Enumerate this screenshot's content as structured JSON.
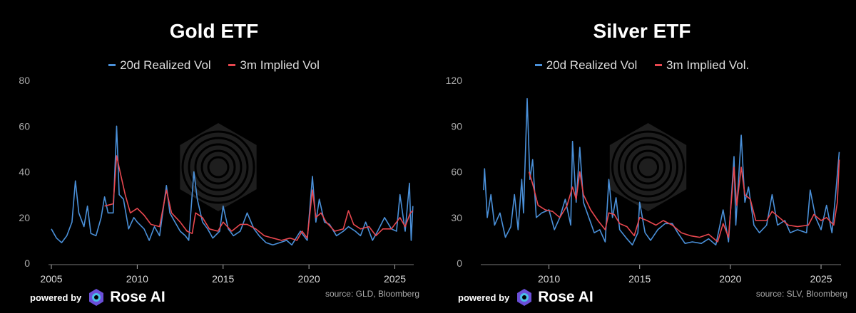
{
  "brand": {
    "powered_by": "powered by",
    "name": "Rose AI"
  },
  "colors": {
    "realized": "#4a90d9",
    "implied": "#e8474f",
    "axis": "#888888",
    "text": "#cccccc"
  },
  "chart_data": [
    {
      "type": "line",
      "title": "Gold ETF",
      "source": "source: GLD, Bloomberg",
      "xlim": [
        2005,
        2026.1
      ],
      "ylim": [
        0,
        80
      ],
      "yticks": [
        0,
        20,
        40,
        60,
        80
      ],
      "xticks": [
        2005,
        2010,
        2015,
        2020,
        2025
      ],
      "grid": false,
      "legend": "top",
      "series": [
        {
          "name": "20d Realized Vol",
          "color": "#4a90d9",
          "points": [
            [
              2005.0,
              15
            ],
            [
              2005.3,
              11
            ],
            [
              2005.6,
              9
            ],
            [
              2005.9,
              12
            ],
            [
              2006.2,
              18
            ],
            [
              2006.4,
              36
            ],
            [
              2006.6,
              22
            ],
            [
              2006.9,
              16
            ],
            [
              2007.1,
              25
            ],
            [
              2007.3,
              13
            ],
            [
              2007.6,
              12
            ],
            [
              2007.9,
              20
            ],
            [
              2008.1,
              29
            ],
            [
              2008.3,
              22
            ],
            [
              2008.6,
              22
            ],
            [
              2008.8,
              60
            ],
            [
              2008.95,
              30
            ],
            [
              2009.2,
              28
            ],
            [
              2009.5,
              15
            ],
            [
              2009.8,
              20
            ],
            [
              2010.0,
              18
            ],
            [
              2010.4,
              15
            ],
            [
              2010.7,
              10
            ],
            [
              2011.0,
              16
            ],
            [
              2011.3,
              12
            ],
            [
              2011.7,
              34
            ],
            [
              2011.9,
              22
            ],
            [
              2012.2,
              18
            ],
            [
              2012.5,
              14
            ],
            [
              2012.8,
              12
            ],
            [
              2013.0,
              10
            ],
            [
              2013.3,
              40
            ],
            [
              2013.5,
              28
            ],
            [
              2013.8,
              18
            ],
            [
              2014.1,
              15
            ],
            [
              2014.4,
              11
            ],
            [
              2014.8,
              14
            ],
            [
              2015.0,
              25
            ],
            [
              2015.3,
              15
            ],
            [
              2015.6,
              12
            ],
            [
              2016.0,
              14
            ],
            [
              2016.4,
              22
            ],
            [
              2016.8,
              15
            ],
            [
              2017.1,
              12
            ],
            [
              2017.5,
              9
            ],
            [
              2017.9,
              8
            ],
            [
              2018.3,
              9
            ],
            [
              2018.7,
              10
            ],
            [
              2019.0,
              8
            ],
            [
              2019.5,
              14
            ],
            [
              2019.9,
              10
            ],
            [
              2020.2,
              38
            ],
            [
              2020.4,
              18
            ],
            [
              2020.6,
              28
            ],
            [
              2020.9,
              18
            ],
            [
              2021.2,
              17
            ],
            [
              2021.6,
              12
            ],
            [
              2022.0,
              14
            ],
            [
              2022.3,
              16
            ],
            [
              2022.7,
              14
            ],
            [
              2023.0,
              12
            ],
            [
              2023.3,
              18
            ],
            [
              2023.7,
              10
            ],
            [
              2024.0,
              14
            ],
            [
              2024.4,
              20
            ],
            [
              2024.8,
              15
            ],
            [
              2025.1,
              14
            ],
            [
              2025.3,
              30
            ],
            [
              2025.6,
              14
            ],
            [
              2025.85,
              35
            ],
            [
              2025.95,
              10
            ],
            [
              2026.05,
              25
            ]
          ]
        },
        {
          "name": "3m Implied Vol",
          "color": "#e8474f",
          "points": [
            [
              2008.1,
              25
            ],
            [
              2008.6,
              26
            ],
            [
              2008.8,
              47
            ],
            [
              2009.0,
              40
            ],
            [
              2009.3,
              30
            ],
            [
              2009.6,
              22
            ],
            [
              2010.0,
              24
            ],
            [
              2010.4,
              21
            ],
            [
              2010.8,
              17
            ],
            [
              2011.3,
              16
            ],
            [
              2011.7,
              32
            ],
            [
              2012.0,
              22
            ],
            [
              2012.5,
              18
            ],
            [
              2012.9,
              14
            ],
            [
              2013.2,
              13
            ],
            [
              2013.4,
              22
            ],
            [
              2013.8,
              20
            ],
            [
              2014.2,
              15
            ],
            [
              2014.7,
              14
            ],
            [
              2015.0,
              18
            ],
            [
              2015.5,
              14
            ],
            [
              2016.0,
              17
            ],
            [
              2016.4,
              17
            ],
            [
              2016.9,
              15
            ],
            [
              2017.4,
              12
            ],
            [
              2017.9,
              11
            ],
            [
              2018.4,
              10
            ],
            [
              2018.9,
              11
            ],
            [
              2019.3,
              10
            ],
            [
              2019.6,
              14
            ],
            [
              2019.9,
              11
            ],
            [
              2020.2,
              32
            ],
            [
              2020.4,
              20
            ],
            [
              2020.7,
              22
            ],
            [
              2021.0,
              18
            ],
            [
              2021.5,
              14
            ],
            [
              2022.0,
              15
            ],
            [
              2022.3,
              23
            ],
            [
              2022.6,
              17
            ],
            [
              2023.0,
              15
            ],
            [
              2023.5,
              16
            ],
            [
              2023.9,
              12
            ],
            [
              2024.3,
              15
            ],
            [
              2024.8,
              15
            ],
            [
              2025.3,
              20
            ],
            [
              2025.6,
              16
            ],
            [
              2025.9,
              22
            ],
            [
              2026.05,
              23
            ]
          ]
        }
      ]
    },
    {
      "type": "line",
      "title": "Silver ETF",
      "source": "source: SLV, Bloomberg",
      "xlim": [
        2006.4,
        2026.1
      ],
      "ylim": [
        0,
        120
      ],
      "yticks": [
        0,
        30,
        60,
        90,
        120
      ],
      "xticks": [
        2010,
        2015,
        2020,
        2025
      ],
      "grid": false,
      "legend": "top",
      "series": [
        {
          "name": "20d Realized Vol",
          "color": "#4a90d9",
          "points": [
            [
              2006.4,
              48
            ],
            [
              2006.45,
              62
            ],
            [
              2006.6,
              30
            ],
            [
              2006.8,
              45
            ],
            [
              2007.0,
              25
            ],
            [
              2007.3,
              33
            ],
            [
              2007.6,
              17
            ],
            [
              2007.9,
              24
            ],
            [
              2008.1,
              45
            ],
            [
              2008.3,
              22
            ],
            [
              2008.5,
              55
            ],
            [
              2008.6,
              33
            ],
            [
              2008.8,
              108
            ],
            [
              2008.95,
              55
            ],
            [
              2009.1,
              68
            ],
            [
              2009.3,
              30
            ],
            [
              2009.6,
              33
            ],
            [
              2010.0,
              35
            ],
            [
              2010.3,
              22
            ],
            [
              2010.6,
              30
            ],
            [
              2010.9,
              42
            ],
            [
              2011.2,
              25
            ],
            [
              2011.3,
              80
            ],
            [
              2011.5,
              40
            ],
            [
              2011.7,
              76
            ],
            [
              2011.9,
              40
            ],
            [
              2012.2,
              30
            ],
            [
              2012.5,
              20
            ],
            [
              2012.8,
              22
            ],
            [
              2013.1,
              14
            ],
            [
              2013.3,
              55
            ],
            [
              2013.5,
              30
            ],
            [
              2013.7,
              43
            ],
            [
              2013.9,
              22
            ],
            [
              2014.3,
              16
            ],
            [
              2014.6,
              12
            ],
            [
              2014.9,
              20
            ],
            [
              2015.0,
              40
            ],
            [
              2015.3,
              20
            ],
            [
              2015.6,
              15
            ],
            [
              2016.0,
              22
            ],
            [
              2016.4,
              26
            ],
            [
              2016.8,
              26
            ],
            [
              2017.1,
              20
            ],
            [
              2017.5,
              13
            ],
            [
              2017.9,
              14
            ],
            [
              2018.4,
              13
            ],
            [
              2018.8,
              16
            ],
            [
              2019.2,
              12
            ],
            [
              2019.6,
              35
            ],
            [
              2019.9,
              14
            ],
            [
              2020.2,
              70
            ],
            [
              2020.3,
              25
            ],
            [
              2020.6,
              84
            ],
            [
              2020.8,
              40
            ],
            [
              2021.0,
              50
            ],
            [
              2021.3,
              25
            ],
            [
              2021.6,
              20
            ],
            [
              2022.0,
              25
            ],
            [
              2022.3,
              45
            ],
            [
              2022.6,
              25
            ],
            [
              2023.0,
              28
            ],
            [
              2023.3,
              20
            ],
            [
              2023.7,
              22
            ],
            [
              2024.2,
              20
            ],
            [
              2024.4,
              48
            ],
            [
              2024.7,
              30
            ],
            [
              2025.0,
              22
            ],
            [
              2025.3,
              38
            ],
            [
              2025.6,
              20
            ],
            [
              2025.8,
              45
            ],
            [
              2026.0,
              73
            ]
          ]
        },
        {
          "name": "3m Implied Vol.",
          "color": "#e8474f",
          "points": [
            [
              2008.9,
              60
            ],
            [
              2009.1,
              52
            ],
            [
              2009.4,
              38
            ],
            [
              2009.8,
              35
            ],
            [
              2010.2,
              34
            ],
            [
              2010.6,
              30
            ],
            [
              2011.0,
              38
            ],
            [
              2011.3,
              50
            ],
            [
              2011.5,
              42
            ],
            [
              2011.7,
              60
            ],
            [
              2011.9,
              45
            ],
            [
              2012.3,
              35
            ],
            [
              2012.7,
              28
            ],
            [
              2013.1,
              22
            ],
            [
              2013.3,
              33
            ],
            [
              2013.6,
              32
            ],
            [
              2013.9,
              26
            ],
            [
              2014.3,
              24
            ],
            [
              2014.7,
              18
            ],
            [
              2015.0,
              30
            ],
            [
              2015.4,
              28
            ],
            [
              2015.9,
              25
            ],
            [
              2016.3,
              28
            ],
            [
              2016.8,
              25
            ],
            [
              2017.3,
              20
            ],
            [
              2017.8,
              18
            ],
            [
              2018.3,
              17
            ],
            [
              2018.8,
              19
            ],
            [
              2019.3,
              14
            ],
            [
              2019.6,
              26
            ],
            [
              2019.9,
              17
            ],
            [
              2020.2,
              63
            ],
            [
              2020.35,
              38
            ],
            [
              2020.6,
              63
            ],
            [
              2020.8,
              45
            ],
            [
              2021.1,
              42
            ],
            [
              2021.4,
              28
            ],
            [
              2022.0,
              28
            ],
            [
              2022.3,
              34
            ],
            [
              2022.7,
              30
            ],
            [
              2023.2,
              25
            ],
            [
              2023.7,
              24
            ],
            [
              2024.3,
              25
            ],
            [
              2024.6,
              32
            ],
            [
              2025.0,
              28
            ],
            [
              2025.3,
              30
            ],
            [
              2025.7,
              25
            ],
            [
              2025.9,
              40
            ],
            [
              2026.0,
              68
            ]
          ]
        }
      ]
    }
  ]
}
